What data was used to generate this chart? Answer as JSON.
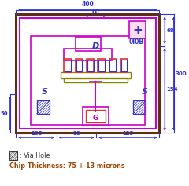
{
  "bg_color": "#ffffff",
  "blue": "#3333cc",
  "magenta": "#cc00cc",
  "dark_brown": "#5a3010",
  "red": "#dd3333",
  "olive": "#888800",
  "dim_color": "#3333cc",
  "label_D": "D",
  "label_S": "S",
  "label_G": "G",
  "title_text": "0I0B",
  "dim_400": "400",
  "dim_60": "60",
  "dim_105": "105",
  "dim_80": "80",
  "dim_125": "125",
  "dim_50": "50",
  "dim_68": "68",
  "dim_154": "154",
  "dim_300": "300",
  "legend_via": ": Via Hole",
  "legend_chip": "Chip Thickness: 75 + 13 microns"
}
